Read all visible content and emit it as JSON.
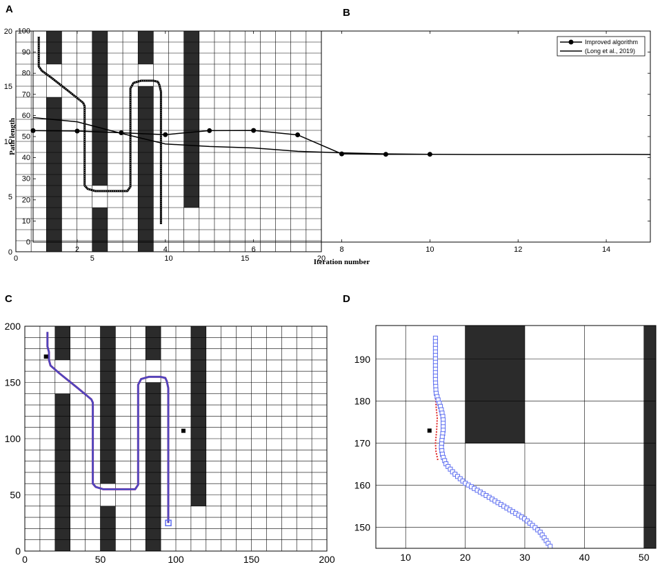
{
  "panels": {
    "a": {
      "letter": "A"
    },
    "b": {
      "letter": "B"
    },
    "c": {
      "letter": "C"
    },
    "d": {
      "letter": "D"
    }
  },
  "colors": {
    "obstacle": "#2b2b2b",
    "path": "#000000",
    "path_purple": "#7030a0",
    "path_blue": "#2f5bd8",
    "path_red": "#e02020",
    "marker_square_outline": "#5b6cf0"
  },
  "chart_data": [
    {
      "panel": "A",
      "type": "grid-map",
      "title": "",
      "xlabel": "",
      "ylabel": "",
      "xlim": [
        0,
        20
      ],
      "ylim": [
        0,
        20
      ],
      "xticks": [
        "0",
        "5",
        "10",
        "15",
        "20"
      ],
      "yticks": [
        "0",
        "5",
        "10",
        "15",
        "20"
      ],
      "grid_step": 1,
      "grid": true,
      "obstacles": [
        {
          "x": [
            2,
            3
          ],
          "y": [
            17,
            20
          ]
        },
        {
          "x": [
            2,
            3
          ],
          "y": [
            0,
            14
          ]
        },
        {
          "x": [
            5,
            6
          ],
          "y": [
            6,
            20
          ]
        },
        {
          "x": [
            5,
            6
          ],
          "y": [
            0,
            4
          ]
        },
        {
          "x": [
            8,
            9
          ],
          "y": [
            17,
            20
          ]
        },
        {
          "x": [
            8,
            9
          ],
          "y": [
            0,
            15
          ]
        },
        {
          "x": [
            11,
            12
          ],
          "y": [
            4,
            20
          ]
        }
      ],
      "path": {
        "x": [
          1.5,
          1.5,
          1.7,
          2.3,
          3.5,
          4.4,
          4.5,
          4.5,
          4.7,
          5.2,
          7.3,
          7.5,
          7.5,
          7.7,
          8.2,
          9.0,
          9.3,
          9.4,
          9.5,
          9.5
        ],
        "y": [
          19.5,
          16.8,
          16.4,
          15.8,
          14.5,
          13.5,
          13.2,
          6.0,
          5.7,
          5.5,
          5.5,
          5.9,
          14.8,
          15.3,
          15.5,
          15.5,
          15.4,
          15.1,
          14.5,
          2.5
        ]
      }
    },
    {
      "panel": "B",
      "type": "line",
      "title": "",
      "xlabel": "Iteration number",
      "ylabel": "Path length",
      "xlim": [
        1,
        15
      ],
      "ylim": [
        0,
        100
      ],
      "xticks": [
        "2",
        "4",
        "6",
        "8",
        "10",
        "12",
        "14"
      ],
      "yticks": [
        "0",
        "10",
        "20",
        "30",
        "40",
        "50",
        "60",
        "70",
        "80",
        "90",
        "100"
      ],
      "legend_position": "top-right",
      "series": [
        {
          "name": "Improved algorithm",
          "marker": "circle",
          "x": [
            1,
            2,
            3,
            4,
            5,
            6,
            7,
            8,
            9,
            10
          ],
          "values": [
            52.8,
            52.6,
            51.8,
            50.9,
            52.8,
            52.9,
            50.8,
            41.8,
            41.6,
            41.6
          ]
        },
        {
          "name": "(Long et al., 2019)",
          "marker": "none",
          "x": [
            1,
            2,
            3,
            4,
            5,
            6,
            7,
            8,
            9,
            10,
            11,
            12,
            13,
            14,
            15
          ],
          "values": [
            59,
            57,
            51.5,
            46.5,
            45.3,
            44.6,
            43,
            42.3,
            41.8,
            41.6,
            41.5,
            41.5,
            41.5,
            41.6,
            41.5
          ]
        }
      ]
    },
    {
      "panel": "C",
      "type": "grid-map",
      "title": "",
      "xlabel": "",
      "ylabel": "",
      "xlim": [
        0,
        200
      ],
      "ylim": [
        0,
        200
      ],
      "xticks": [
        "0",
        "50",
        "100",
        "150",
        "200"
      ],
      "yticks": [
        "0",
        "50",
        "100",
        "150",
        "200"
      ],
      "grid_step": 10,
      "grid": true,
      "obstacles": [
        {
          "x": [
            20,
            30
          ],
          "y": [
            170,
            200
          ]
        },
        {
          "x": [
            20,
            30
          ],
          "y": [
            0,
            140
          ]
        },
        {
          "x": [
            50,
            60
          ],
          "y": [
            60,
            200
          ]
        },
        {
          "x": [
            50,
            60
          ],
          "y": [
            0,
            40
          ]
        },
        {
          "x": [
            80,
            90
          ],
          "y": [
            170,
            200
          ]
        },
        {
          "x": [
            80,
            90
          ],
          "y": [
            0,
            150
          ]
        },
        {
          "x": [
            110,
            120
          ],
          "y": [
            40,
            200
          ]
        }
      ],
      "markers": [
        {
          "x": 14,
          "y": 173
        },
        {
          "x": 105,
          "y": 107
        }
      ],
      "goal": {
        "x": 95,
        "y": 25
      },
      "path": {
        "x": [
          15,
          15,
          16,
          16,
          17,
          23,
          35,
          44,
          45,
          45,
          47,
          52,
          73,
          75,
          75,
          77,
          82,
          90,
          93,
          94,
          95,
          95
        ],
        "y": [
          195,
          182,
          177,
          170,
          165,
          158,
          145,
          135,
          132,
          60,
          57,
          55,
          55,
          59,
          148,
          153,
          155,
          155,
          154,
          151,
          145,
          25
        ]
      }
    },
    {
      "panel": "D",
      "type": "grid-map",
      "title": "",
      "xlabel": "",
      "ylabel": "",
      "xlim": [
        5,
        52
      ],
      "ylim": [
        145,
        198
      ],
      "xticks": [
        "10",
        "20",
        "30",
        "40",
        "50"
      ],
      "yticks": [
        "150",
        "160",
        "170",
        "180",
        "190"
      ],
      "grid_step": 10,
      "grid": true,
      "obstacles": [
        {
          "x": [
            20,
            30
          ],
          "y": [
            170,
            200
          ]
        },
        {
          "x": [
            50,
            60
          ],
          "y": [
            140,
            200
          ]
        }
      ],
      "markers": [
        {
          "x": 14,
          "y": 173
        }
      ],
      "red_path": {
        "x": [
          15,
          15.1,
          15.3,
          15.2,
          15.0,
          15.1,
          15.4
        ],
        "y": [
          182,
          179,
          176,
          173,
          170,
          168,
          166
        ]
      },
      "path": {
        "x": [
          15,
          15,
          15.1,
          15.4,
          15.9,
          16.3,
          16.3,
          16.1,
          16.0,
          16.2,
          16.8,
          18.0,
          20.0,
          23.0,
          26.5,
          30.0,
          32.5,
          34.5
        ],
        "y": [
          195,
          185,
          182,
          180.5,
          178.5,
          176,
          173,
          171,
          169,
          167,
          165,
          163,
          160.5,
          158,
          155,
          152,
          149,
          145
        ]
      }
    }
  ]
}
